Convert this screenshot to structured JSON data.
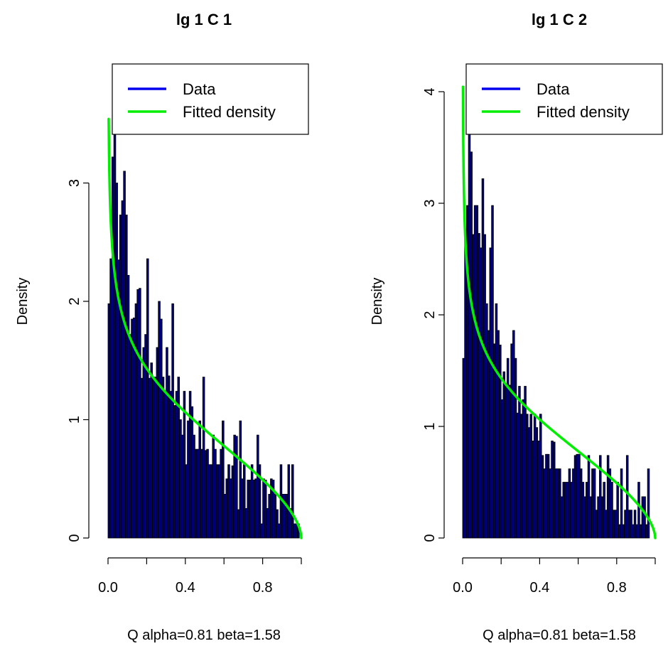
{
  "colors": {
    "bar_fill": "#00007a",
    "bar_stroke": "#000000",
    "data_line": "#0000ee",
    "fit_line": "#00ee00"
  },
  "chart_data": [
    {
      "type": "bar",
      "title": "lg 1 C 1",
      "xlabel": "Q alpha=0.81 beta=1.58",
      "ylabel": "Density",
      "xlim": [
        0,
        1
      ],
      "ylim": [
        0,
        4
      ],
      "x_ticks": [
        0.0,
        0.2,
        0.4,
        0.6,
        0.8,
        1.0
      ],
      "x_tick_labels": [
        "0.0",
        "",
        "0.4",
        "",
        "0.8",
        ""
      ],
      "y_ticks": [
        0,
        1,
        2,
        3
      ],
      "y_tick_labels": [
        "0",
        "1",
        "2",
        "3"
      ],
      "legend": {
        "placement": "top-right",
        "entries": [
          {
            "label": "Data",
            "color": "#0000ee"
          },
          {
            "label": "Fitted density",
            "color": "#00ee00"
          }
        ]
      },
      "bin_width": 0.01,
      "values": [
        1.98,
        2.36,
        3.22,
        3.85,
        3.0,
        2.35,
        2.73,
        2.85,
        3.1,
        2.73,
        2.22,
        1.72,
        1.85,
        1.86,
        1.98,
        2.1,
        2.11,
        1.35,
        1.61,
        1.72,
        2.36,
        1.35,
        1.48,
        1.35,
        1.36,
        1.61,
        2.0,
        1.85,
        1.36,
        1.24,
        1.61,
        1.37,
        1.24,
        1.98,
        1.12,
        1.24,
        1.36,
        1.0,
        0.87,
        1.24,
        0.62,
        0.99,
        1.24,
        1.11,
        0.87,
        0.75,
        0.75,
        0.99,
        0.75,
        1.36,
        0.74,
        0.75,
        0.62,
        0.62,
        0.87,
        0.75,
        0.62,
        0.62,
        0.75,
        0.99,
        0.37,
        0.5,
        0.62,
        0.5,
        0.61,
        0.87,
        0.86,
        0.24,
        0.99,
        0.5,
        0.62,
        0.25,
        0.49,
        0.49,
        0.62,
        0.49,
        0.5,
        0.87,
        0.62,
        0.12,
        0.5,
        0.49,
        0.25,
        0.37,
        0.5,
        0.49,
        0.37,
        0.24,
        0.12,
        0.62,
        0.37,
        0.37,
        0.37,
        0.62,
        0.25,
        0.62,
        0.12,
        0.12,
        0.12
      ],
      "fit": {
        "alpha": 0.81,
        "beta": 1.58
      }
    },
    {
      "type": "bar",
      "title": "lg 1 C 2",
      "xlabel": "Q alpha=0.81 beta=1.58",
      "ylabel": "Density",
      "xlim": [
        0,
        1
      ],
      "ylim": [
        0,
        4.2
      ],
      "x_ticks": [
        0.0,
        0.2,
        0.4,
        0.6,
        0.8,
        1.0
      ],
      "x_tick_labels": [
        "0.0",
        "",
        "0.4",
        "",
        "0.8",
        ""
      ],
      "y_ticks": [
        0,
        1,
        2,
        3,
        4
      ],
      "y_tick_labels": [
        "0",
        "1",
        "2",
        "3",
        "4"
      ],
      "legend": {
        "placement": "top-right",
        "entries": [
          {
            "label": "Data",
            "color": "#0000ee"
          },
          {
            "label": "Fitted density",
            "color": "#00ee00"
          }
        ]
      },
      "bin_width": 0.01,
      "values": [
        1.61,
        2.72,
        2.98,
        4.09,
        3.46,
        2.72,
        2.98,
        2.98,
        2.73,
        2.6,
        3.22,
        2.72,
        2.1,
        1.86,
        2.6,
        2.98,
        1.74,
        2.1,
        1.86,
        1.73,
        1.24,
        1.49,
        1.36,
        1.61,
        1.37,
        1.74,
        1.86,
        1.61,
        1.12,
        1.36,
        1.11,
        1.24,
        1.36,
        1.11,
        0.99,
        1.11,
        0.87,
        1.11,
        0.99,
        0.87,
        1.11,
        0.74,
        0.62,
        0.75,
        0.75,
        0.62,
        0.87,
        0.86,
        0.62,
        0.62,
        0.62,
        0.37,
        0.5,
        0.5,
        0.5,
        0.62,
        0.5,
        0.62,
        0.74,
        0.75,
        0.75,
        0.62,
        0.5,
        0.37,
        0.5,
        0.74,
        0.37,
        0.62,
        0.62,
        0.25,
        0.37,
        0.74,
        0.37,
        0.5,
        0.25,
        0.74,
        0.62,
        0.5,
        0.25,
        0.25,
        0.5,
        0.12,
        0.62,
        0.12,
        0.25,
        0.74,
        0.25,
        0.25,
        0.12,
        0.25,
        0.12,
        0.5,
        0.12,
        0.37,
        0.37,
        0.12,
        0.62
      ],
      "fit": {
        "alpha": 0.81,
        "beta": 1.58
      }
    }
  ]
}
